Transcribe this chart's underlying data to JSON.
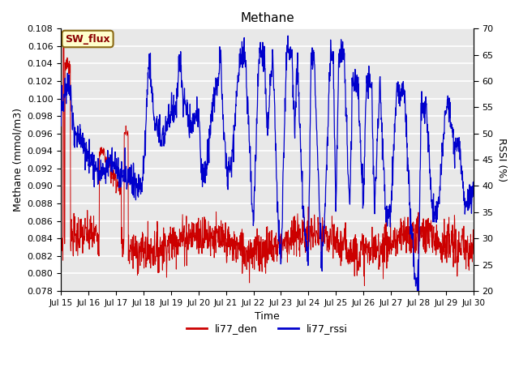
{
  "title": "Methane",
  "xlabel": "Time",
  "ylabel_left": "Methane (mmol/m3)",
  "ylabel_right": "RSSI (%)",
  "ylim_left": [
    0.078,
    0.108
  ],
  "ylim_right": [
    20,
    70
  ],
  "yticks_left": [
    0.078,
    0.08,
    0.082,
    0.084,
    0.086,
    0.088,
    0.09,
    0.092,
    0.094,
    0.096,
    0.098,
    0.1,
    0.102,
    0.104,
    0.106,
    0.108
  ],
  "yticks_right": [
    20,
    25,
    30,
    35,
    40,
    45,
    50,
    55,
    60,
    65,
    70
  ],
  "xtick_labels": [
    "Jul 15",
    "Jul 16",
    "Jul 17",
    "Jul 18",
    "Jul 19",
    "Jul 20",
    "Jul 21",
    "Jul 22",
    "Jul 23",
    "Jul 24",
    "Jul 25",
    "Jul 26",
    "Jul 27",
    "Jul 28",
    "Jul 29",
    "Jul 30"
  ],
  "color_den": "#cc0000",
  "color_rssi": "#0000cc",
  "legend_labels": [
    "li77_den",
    "li77_rssi"
  ],
  "annotation_text": "SW_flux",
  "annotation_color": "#8B0000",
  "annotation_bg": "#ffffcc",
  "annotation_border": "#8B6914",
  "plot_bg_color": "#e8e8e8",
  "grid_color": "#ffffff"
}
